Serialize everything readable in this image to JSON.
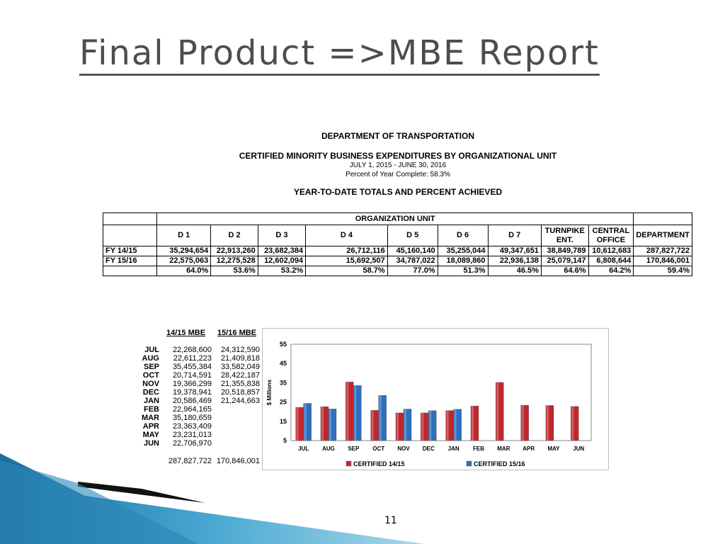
{
  "slide": {
    "title": "Final Product =>MBE Report",
    "page_number": "11"
  },
  "report": {
    "department": "DEPARTMENT OF TRANSPORTATION",
    "heading": "CERTIFIED MINORITY BUSINESS EXPENDITURES BY ORGANIZATIONAL UNIT",
    "dates": "JULY 1, 2015 - JUNE 30, 2016",
    "percent_complete": "Percent of Year Complete: 58.3%",
    "ytd_heading": "YEAR-TO-DATE TOTALS AND PERCENT ACHIEVED"
  },
  "org_table": {
    "unit_header": "ORGANIZATION UNIT",
    "columns": [
      "D 1",
      "D 2",
      "D 3",
      "D 4",
      "D 5",
      "D 6",
      "D 7",
      "TURNPIKE ENT.",
      "CENTRAL OFFICE",
      "DEPARTMENT"
    ],
    "rows": [
      {
        "label": "FY 14/15",
        "values": [
          "35,294,654",
          "22,913,260",
          "23,682,384",
          "26,712,116",
          "45,160,140",
          "35,255,044",
          "49,347,651",
          "38,849,789",
          "10,612,683",
          "287,827,722"
        ]
      },
      {
        "label": "FY 15/16",
        "values": [
          "22,575,063",
          "12,275,528",
          "12,602,094",
          "15,692,507",
          "34,787,022",
          "18,089,860",
          "22,936,138",
          "25,079,147",
          "6,808,644",
          "170,846,001"
        ]
      },
      {
        "label": "",
        "values": [
          "64.0%",
          "53.6%",
          "53.2%",
          "58.7%",
          "77.0%",
          "51.3%",
          "46.5%",
          "64.6%",
          "64.2%",
          "59.4%"
        ]
      }
    ]
  },
  "monthly_table": {
    "headers": [
      "14/15 MBE",
      "15/16 MBE"
    ],
    "rows": [
      {
        "month": "JUL",
        "v1": "22,268,600",
        "v2": "24,312,590"
      },
      {
        "month": "AUG",
        "v1": "22,611,223",
        "v2": "21,409,818"
      },
      {
        "month": "SEP",
        "v1": "35,455,384",
        "v2": "33,582,049"
      },
      {
        "month": "OCT",
        "v1": "20,714,591",
        "v2": "28,422,187"
      },
      {
        "month": "NOV",
        "v1": "19,366,299",
        "v2": "21,355,838"
      },
      {
        "month": "DEC",
        "v1": "19,378,941",
        "v2": "20,518,857"
      },
      {
        "month": "JAN",
        "v1": "20,586,469",
        "v2": "21,244,663"
      },
      {
        "month": "FEB",
        "v1": "22,964,165",
        "v2": ""
      },
      {
        "month": "MAR",
        "v1": "35,180,659",
        "v2": ""
      },
      {
        "month": "APR",
        "v1": "23,363,409",
        "v2": ""
      },
      {
        "month": "MAY",
        "v1": "23,231,013",
        "v2": ""
      },
      {
        "month": "JUN",
        "v1": "22,706,970",
        "v2": ""
      }
    ],
    "totals": {
      "v1": "287,827,722",
      "v2": "170,846,001"
    }
  },
  "chart_data": {
    "type": "bar",
    "title": "",
    "xlabel": "",
    "ylabel": "$ Millions",
    "categories": [
      "JUL",
      "AUG",
      "SEP",
      "OCT",
      "NOV",
      "DEC",
      "JAN",
      "FEB",
      "MAR",
      "APR",
      "MAY",
      "JUN"
    ],
    "series": [
      {
        "name": "CERTIFIED 14/15",
        "color": "#c0272d",
        "values": [
          22.27,
          22.61,
          35.46,
          20.71,
          19.37,
          19.38,
          20.59,
          22.96,
          35.18,
          23.36,
          23.23,
          22.71
        ]
      },
      {
        "name": "CERTIFIED 15/16",
        "color": "#2e6fbd",
        "values": [
          24.31,
          21.41,
          33.58,
          28.42,
          21.36,
          20.52,
          21.24,
          null,
          null,
          null,
          null,
          null
        ]
      }
    ],
    "ylim": [
      5,
      55
    ],
    "yticks": [
      5,
      15,
      25,
      35,
      45,
      55
    ],
    "grid": false,
    "legend": "bottom"
  }
}
